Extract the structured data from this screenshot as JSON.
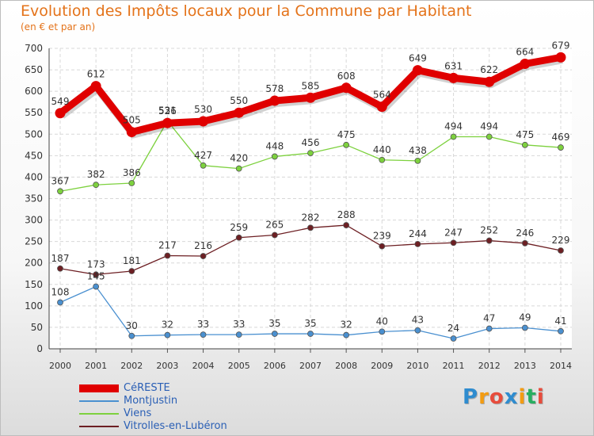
{
  "header": {
    "title": "Evolution des Impôts locaux pour la Commune par Habitant",
    "subtitle": "(en € et par an)"
  },
  "logo": {
    "text": "Proxiti",
    "letters": [
      {
        "ch": "P",
        "color": "#2f8ccf"
      },
      {
        "ch": "r",
        "color": "#f39c12"
      },
      {
        "ch": "o",
        "color": "#e74c3c"
      },
      {
        "ch": "x",
        "color": "#2f8ccf"
      },
      {
        "ch": "i",
        "color": "#f39c12"
      },
      {
        "ch": "t",
        "color": "#27ae60"
      },
      {
        "ch": "i",
        "color": "#e74c3c"
      }
    ]
  },
  "chart_data": {
    "type": "line",
    "title": "Evolution des Impôts locaux pour la Commune par Habitant",
    "subtitle": "(en € et par an)",
    "x": [
      2000,
      2001,
      2002,
      2003,
      2004,
      2005,
      2006,
      2007,
      2008,
      2009,
      2010,
      2011,
      2012,
      2013,
      2014
    ],
    "ylim": [
      0,
      700
    ],
    "yticks": [
      0,
      50,
      100,
      150,
      200,
      250,
      300,
      350,
      400,
      450,
      500,
      550,
      600,
      650,
      700
    ],
    "grid": true,
    "legend_position": "bottom-left",
    "series": [
      {
        "name": "Vitrolles-en-Lubéron",
        "color": "#6d1f23",
        "values": [
          187,
          173,
          181,
          217,
          216,
          259,
          265,
          282,
          288,
          239,
          244,
          247,
          252,
          246,
          229
        ]
      },
      {
        "name": "Viens",
        "color": "#7dd13e",
        "values": [
          367,
          382,
          386,
          531,
          427,
          420,
          448,
          456,
          475,
          440,
          438,
          494,
          494,
          475,
          469
        ]
      },
      {
        "name": "Montjustin",
        "color": "#4a90d0",
        "values": [
          108,
          145,
          30,
          32,
          33,
          33,
          35,
          35,
          32,
          40,
          43,
          24,
          47,
          49,
          41
        ]
      },
      {
        "name": "CéRESTE",
        "color": "#e00000",
        "values": [
          549,
          612,
          505,
          526,
          530,
          550,
          578,
          585,
          608,
          564,
          649,
          631,
          622,
          664,
          679
        ]
      }
    ]
  },
  "legend": {
    "items": [
      {
        "name": "CéRESTE",
        "color": "#e00000",
        "thickness": 10
      },
      {
        "name": "Montjustin",
        "color": "#4a90d0",
        "thickness": 2
      },
      {
        "name": "Viens",
        "color": "#7dd13e",
        "thickness": 2
      },
      {
        "name": "Vitrolles-en-Lubéron",
        "color": "#6d1f23",
        "thickness": 2
      }
    ]
  }
}
